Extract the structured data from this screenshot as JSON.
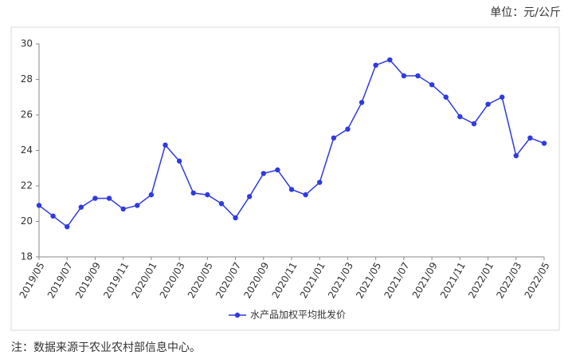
{
  "chart_data": {
    "type": "line",
    "unit_label": "单位：元/公斤",
    "note": "注：数据来源于农业农村部信息中心。",
    "categories": [
      "2019/05",
      null,
      "2019/07",
      null,
      "2019/09",
      null,
      "2019/11",
      null,
      "2020/01",
      null,
      "2020/03",
      null,
      "2020/05",
      null,
      "2020/07",
      null,
      "2020/09",
      null,
      "2020/11",
      null,
      "2021/01",
      null,
      "2021/03",
      null,
      "2021/05",
      null,
      "2021/07",
      null,
      "2021/09",
      null,
      "2021/11",
      null,
      "2022/01",
      null,
      "2022/03",
      null,
      "2022/05"
    ],
    "series": [
      {
        "name": "水产品加权平均批发价",
        "color": "#2f3ae0",
        "values": [
          20.9,
          20.3,
          19.7,
          20.8,
          21.3,
          21.3,
          20.7,
          20.9,
          21.5,
          24.3,
          23.4,
          21.6,
          21.5,
          21.0,
          20.2,
          21.4,
          22.7,
          22.9,
          21.8,
          21.5,
          22.2,
          24.7,
          25.2,
          26.7,
          28.8,
          29.1,
          28.2,
          28.2,
          27.7,
          27.0,
          25.9,
          25.5,
          26.6,
          27.0,
          23.7,
          24.7,
          24.4
        ]
      }
    ],
    "ylim": [
      18,
      30
    ],
    "yticks": [
      18,
      20,
      22,
      24,
      26,
      28,
      30
    ],
    "grid": false,
    "legend": "bottom"
  }
}
